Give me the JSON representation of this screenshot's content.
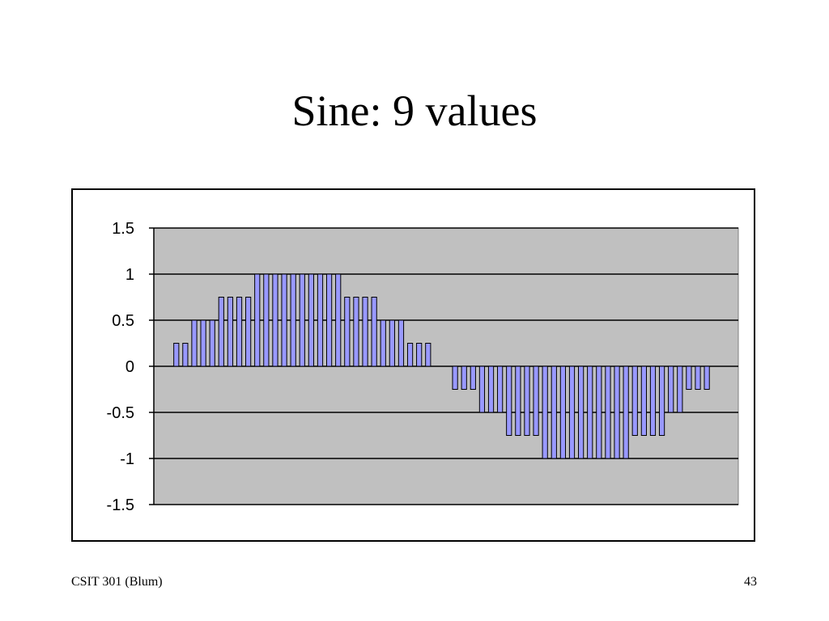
{
  "chart_data": {
    "type": "bar",
    "title": "Sine: 9 values",
    "values": [
      0,
      0,
      0.25,
      0.25,
      0.5,
      0.5,
      0.5,
      0.75,
      0.75,
      0.75,
      0.75,
      1,
      1,
      1,
      1,
      1,
      1,
      1,
      1,
      1,
      1,
      0.75,
      0.75,
      0.75,
      0.75,
      0.5,
      0.5,
      0.5,
      0.25,
      0.25,
      0.25,
      0,
      0,
      -0.25,
      -0.25,
      -0.25,
      -0.5,
      -0.5,
      -0.5,
      -0.75,
      -0.75,
      -0.75,
      -0.75,
      -1,
      -1,
      -1,
      -1,
      -1,
      -1,
      -1,
      -1,
      -1,
      -1,
      -0.75,
      -0.75,
      -0.75,
      -0.75,
      -0.5,
      -0.5,
      -0.25,
      -0.25,
      -0.25,
      0,
      0,
      0
    ],
    "color": "#9999ff",
    "ylim": [
      -1.5,
      1.5
    ],
    "yticks": [
      -1.5,
      -1,
      -0.5,
      0,
      0.5,
      1,
      1.5
    ],
    "grid": true
  },
  "footer": {
    "left": "CSIT 301 (Blum)",
    "right": "43"
  }
}
